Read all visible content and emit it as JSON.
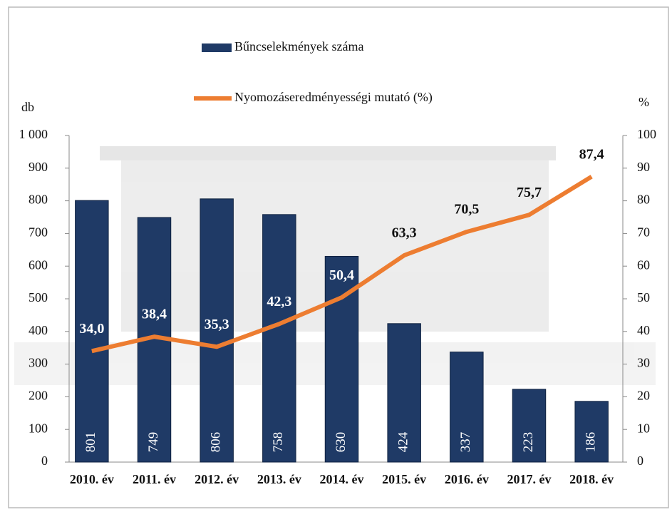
{
  "chart_data": {
    "type": "bar",
    "y_label": "db",
    "y2_label": "%",
    "categories": [
      "2010. év",
      "2011. év",
      "2012. év",
      "2013. év",
      "2014. év",
      "2015. év",
      "2016. év",
      "2017. év",
      "2018. év"
    ],
    "series": [
      {
        "name": "Bűncselekmények száma",
        "type": "bar",
        "color": "#1f3a66",
        "values": [
          801,
          749,
          806,
          758,
          630,
          424,
          337,
          223,
          186
        ]
      },
      {
        "name": "Nyomozáseredményességi mutató (%)",
        "type": "line",
        "axis": "y2",
        "color": "#ed7d31",
        "values": [
          34.0,
          38.4,
          35.3,
          42.3,
          50.4,
          63.3,
          70.5,
          75.7,
          87.4
        ],
        "value_labels": [
          "34,0",
          "38,4",
          "35,3",
          "42,3",
          "50,4",
          "63,3",
          "70,5",
          "75,7",
          "87,4"
        ]
      }
    ],
    "ylim": [
      0,
      1000
    ],
    "yticks": [
      0,
      100,
      200,
      300,
      400,
      500,
      600,
      700,
      800,
      900,
      {
        "value": 1000,
        "label": "1 000"
      }
    ],
    "y2lim": [
      0,
      100
    ],
    "y2ticks": [
      0,
      10,
      20,
      30,
      40,
      50,
      60,
      70,
      80,
      90,
      100
    ]
  }
}
